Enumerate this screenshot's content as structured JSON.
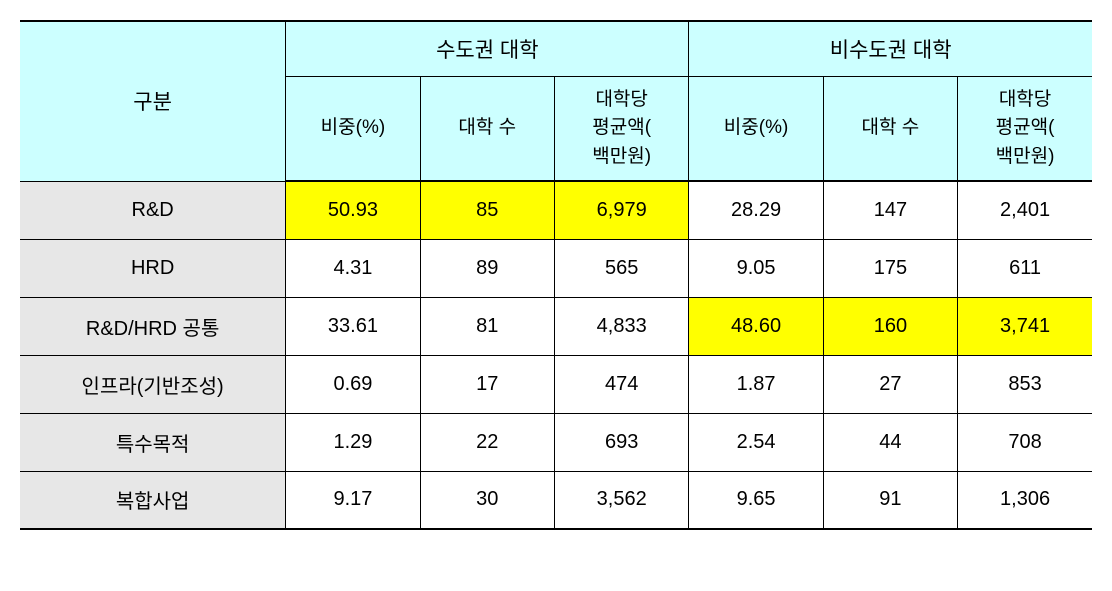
{
  "table": {
    "colors": {
      "header_bg": "#ccffff",
      "row_label_bg": "#e7e7e7",
      "highlight_bg": "#ffff00",
      "border": "#000000",
      "text": "#000000"
    },
    "header": {
      "category_label": "구분",
      "group1": "수도권 대학",
      "group2": "비수도권 대학",
      "sub1": "비중(%)",
      "sub2": "대학 수",
      "sub3": "대학당\n평균액(\n백만원)"
    },
    "rows": [
      {
        "label": "R&D",
        "metro_pct": "50.93",
        "metro_count": "85",
        "metro_avg": "6,979",
        "nonmetro_pct": "28.29",
        "nonmetro_count": "147",
        "nonmetro_avg": "2,401",
        "highlight": "metro"
      },
      {
        "label": "HRD",
        "metro_pct": "4.31",
        "metro_count": "89",
        "metro_avg": "565",
        "nonmetro_pct": "9.05",
        "nonmetro_count": "175",
        "nonmetro_avg": "611",
        "highlight": "none"
      },
      {
        "label": "R&D/HRD 공통",
        "metro_pct": "33.61",
        "metro_count": "81",
        "metro_avg": "4,833",
        "nonmetro_pct": "48.60",
        "nonmetro_count": "160",
        "nonmetro_avg": "3,741",
        "highlight": "nonmetro"
      },
      {
        "label": "인프라(기반조성)",
        "metro_pct": "0.69",
        "metro_count": "17",
        "metro_avg": "474",
        "nonmetro_pct": "1.87",
        "nonmetro_count": "27",
        "nonmetro_avg": "853",
        "highlight": "none"
      },
      {
        "label": "특수목적",
        "metro_pct": "1.29",
        "metro_count": "22",
        "metro_avg": "693",
        "nonmetro_pct": "2.54",
        "nonmetro_count": "44",
        "nonmetro_avg": "708",
        "highlight": "none"
      },
      {
        "label": "복합사업",
        "metro_pct": "9.17",
        "metro_count": "30",
        "metro_avg": "3,562",
        "nonmetro_pct": "9.65",
        "nonmetro_count": "91",
        "nonmetro_avg": "1,306",
        "highlight": "none"
      }
    ]
  }
}
